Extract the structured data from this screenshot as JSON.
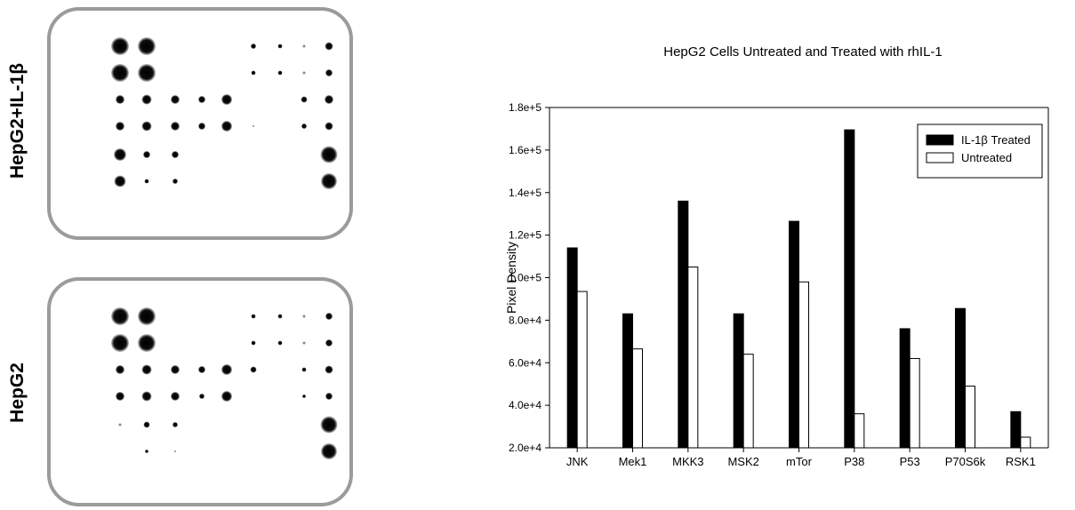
{
  "array_panels": [
    {
      "label": "HepG2+IL-1β",
      "rows": [
        [
          20,
          20,
          0,
          0,
          0,
          6,
          5,
          3,
          9
        ],
        [
          20,
          20,
          0,
          0,
          0,
          5,
          5,
          3,
          8
        ],
        [
          10,
          11,
          10,
          8,
          12,
          0,
          0,
          7,
          10
        ],
        [
          10,
          11,
          10,
          8,
          12,
          2,
          0,
          6,
          9
        ],
        [
          14,
          8,
          8,
          0,
          0,
          0,
          0,
          0,
          19
        ],
        [
          13,
          5,
          6,
          0,
          0,
          0,
          0,
          0,
          18
        ]
      ]
    },
    {
      "label": "HepG2",
      "rows": [
        [
          20,
          20,
          0,
          0,
          0,
          5,
          5,
          3,
          8
        ],
        [
          20,
          20,
          0,
          0,
          0,
          5,
          5,
          3,
          8
        ],
        [
          10,
          11,
          10,
          8,
          12,
          7,
          0,
          5,
          9
        ],
        [
          10,
          11,
          10,
          6,
          12,
          0,
          0,
          4,
          8
        ],
        [
          3,
          7,
          6,
          0,
          0,
          0,
          0,
          0,
          19
        ],
        [
          0,
          4,
          2,
          0,
          0,
          0,
          0,
          0,
          18
        ]
      ]
    }
  ],
  "chart_data": {
    "type": "bar",
    "title": "HepG2 Cells Untreated and Treated with  rhIL-1",
    "xlabel": "",
    "ylabel": "Pixel Density",
    "ylim": [
      20000,
      180000
    ],
    "yticks": [
      "2.0e+4",
      "4.0e+4",
      "6.0e+4",
      "8.0e+4",
      "1.0e+5",
      "1.2e+5",
      "1.4e+5",
      "1.6e+5",
      "1.8e+5"
    ],
    "ytick_values": [
      20000,
      40000,
      60000,
      80000,
      100000,
      120000,
      140000,
      160000,
      180000
    ],
    "categories": [
      "JNK",
      "Mek1",
      "MKK3",
      "MSK2",
      "mTor",
      "P38",
      "P53",
      "P70S6k",
      "RSK1"
    ],
    "series": [
      {
        "name": "IL-1β Treated",
        "color": "#000000",
        "values": [
          114000,
          83000,
          136000,
          83000,
          126500,
          169500,
          76000,
          85500,
          37000
        ]
      },
      {
        "name": "Untreated",
        "color": "#ffffff",
        "values": [
          93500,
          66500,
          105000,
          64000,
          98000,
          36000,
          62000,
          49000,
          25000
        ]
      }
    ],
    "legend": "top-right",
    "grid": false
  }
}
